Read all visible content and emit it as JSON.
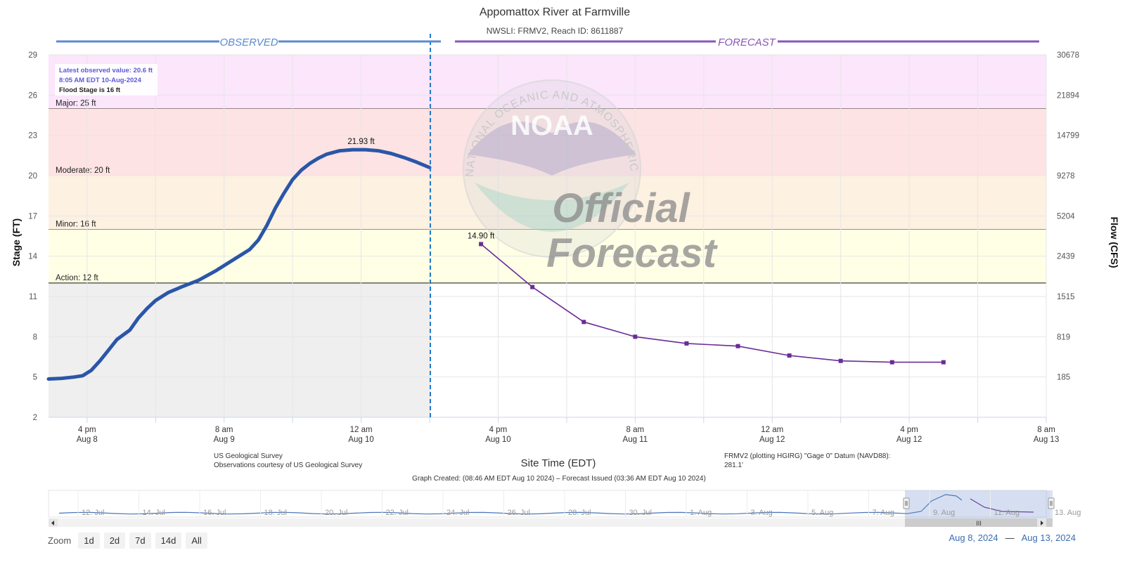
{
  "chart_data": {
    "type": "line",
    "title": "Appomattox River at Farmville",
    "subtitle": "NWSLI: FRMV2, Reach ID: 8611887",
    "xlabel": "Site Time (EDT)",
    "ylabel": "Stage (FT)",
    "y2label": "Flow (CFS)",
    "ylim": [
      2,
      29
    ],
    "yticks": [
      2,
      5,
      8,
      11,
      14,
      17,
      20,
      23,
      26,
      29
    ],
    "y2ticks": [
      {
        "stage": 5,
        "label": "185"
      },
      {
        "stage": 8,
        "label": "819"
      },
      {
        "stage": 11,
        "label": "1515"
      },
      {
        "stage": 14,
        "label": "2439"
      },
      {
        "stage": 17,
        "label": "5204"
      },
      {
        "stage": 20,
        "label": "9278"
      },
      {
        "stage": 23,
        "label": "14799"
      },
      {
        "stage": 26,
        "label": "21894"
      },
      {
        "stage": 29,
        "label": "30678"
      }
    ],
    "xlim": [
      "2024-08-08 11:30",
      "2024-08-13 08:00"
    ],
    "xticks": [
      {
        "t": "2024-08-08 16:00",
        "time": "4 pm",
        "date": "Aug 8"
      },
      {
        "t": "2024-08-09 08:00",
        "time": "8 am",
        "date": "Aug 9"
      },
      {
        "t": "2024-08-10 00:00",
        "time": "12 am",
        "date": "Aug 10"
      },
      {
        "t": "2024-08-10 16:00",
        "time": "4 pm",
        "date": "Aug 10"
      },
      {
        "t": "2024-08-11 08:00",
        "time": "8 am",
        "date": "Aug 11"
      },
      {
        "t": "2024-08-12 00:00",
        "time": "12 am",
        "date": "Aug 12"
      },
      {
        "t": "2024-08-12 16:00",
        "time": "4 pm",
        "date": "Aug 12"
      },
      {
        "t": "2024-08-13 08:00",
        "time": "8 am",
        "date": "Aug 13"
      }
    ],
    "grid": true,
    "now": "2024-08-10 08:05",
    "sections": {
      "observed": "OBSERVED",
      "forecast": "FORECAST"
    },
    "flood_bands": [
      {
        "label": "Major: 25 ft",
        "from": 25,
        "to": 29,
        "color": "#fbe6fb"
      },
      {
        "label": "Moderate: 20 ft",
        "from": 20,
        "to": 25,
        "color": "#fde3e3"
      },
      {
        "label": "Minor: 16 ft",
        "from": 16,
        "to": 20,
        "color": "#fdf1e1"
      },
      {
        "label": "Action: 12 ft",
        "from": 12,
        "to": 16,
        "color": "#ffffe6"
      }
    ],
    "series": [
      {
        "name": "Observed",
        "color": "#2a56a8",
        "points": [
          [
            "2024-08-08 11:30",
            4.85
          ],
          [
            "2024-08-08 13:00",
            4.9
          ],
          [
            "2024-08-08 14:30",
            5.0
          ],
          [
            "2024-08-08 15:30",
            5.1
          ],
          [
            "2024-08-08 16:30",
            5.5
          ],
          [
            "2024-08-08 17:30",
            6.2
          ],
          [
            "2024-08-08 18:30",
            7.0
          ],
          [
            "2024-08-08 19:30",
            7.8
          ],
          [
            "2024-08-08 21:00",
            8.5
          ],
          [
            "2024-08-08 22:00",
            9.4
          ],
          [
            "2024-08-08 23:00",
            10.1
          ],
          [
            "2024-08-09 00:00",
            10.7
          ],
          [
            "2024-08-09 01:30",
            11.3
          ],
          [
            "2024-08-09 03:00",
            11.7
          ],
          [
            "2024-08-09 05:00",
            12.2
          ],
          [
            "2024-08-09 07:00",
            12.9
          ],
          [
            "2024-08-09 09:00",
            13.7
          ],
          [
            "2024-08-09 11:00",
            14.5
          ],
          [
            "2024-08-09 12:00",
            15.2
          ],
          [
            "2024-08-09 13:00",
            16.3
          ],
          [
            "2024-08-09 14:00",
            17.6
          ],
          [
            "2024-08-09 15:00",
            18.7
          ],
          [
            "2024-08-09 16:00",
            19.7
          ],
          [
            "2024-08-09 17:00",
            20.4
          ],
          [
            "2024-08-09 18:00",
            20.9
          ],
          [
            "2024-08-09 19:00",
            21.3
          ],
          [
            "2024-08-09 20:00",
            21.6
          ],
          [
            "2024-08-09 21:30",
            21.85
          ],
          [
            "2024-08-09 23:00",
            21.93
          ],
          [
            "2024-08-10 00:30",
            21.93
          ],
          [
            "2024-08-10 02:00",
            21.85
          ],
          [
            "2024-08-10 03:30",
            21.65
          ],
          [
            "2024-08-10 05:00",
            21.35
          ],
          [
            "2024-08-10 06:30",
            21.0
          ],
          [
            "2024-08-10 08:00",
            20.6
          ]
        ],
        "peak_label": {
          "t": "2024-08-10 00:00",
          "v": 21.93,
          "text": "21.93 ft"
        }
      },
      {
        "name": "Forecast",
        "color": "#6a2c97",
        "points": [
          [
            "2024-08-10 14:00",
            14.9
          ],
          [
            "2024-08-10 20:00",
            11.7
          ],
          [
            "2024-08-11 02:00",
            9.1
          ],
          [
            "2024-08-11 08:00",
            8.0
          ],
          [
            "2024-08-11 14:00",
            7.5
          ],
          [
            "2024-08-11 20:00",
            7.3
          ],
          [
            "2024-08-12 02:00",
            6.6
          ],
          [
            "2024-08-12 08:00",
            6.2
          ],
          [
            "2024-08-12 14:00",
            6.1
          ],
          [
            "2024-08-12 20:00",
            6.1
          ]
        ],
        "peak_label": {
          "t": "2024-08-10 14:00",
          "v": 14.9,
          "text": "14.90 ft"
        }
      }
    ],
    "info_box": {
      "latest": "Latest observed value: 20.6 ft",
      "time": "8:05 AM EDT 10-Aug-2024",
      "flood_stage": "Flood Stage is 16 ft"
    },
    "watermark": {
      "ring_text": "NATIONAL OCEANIC AND ATMOSPHERIC ADMINISTRATION · U.S. DEPARTMENT OF COMMERCE",
      "logo_text": "NOAA",
      "stamp_line1": "Official",
      "stamp_line2": "Forecast"
    },
    "credits": {
      "source_line1": "US Geological Survey",
      "source_line2": "Observations courtesy of US Geological Survey",
      "datum_line1": "FRMV2 (plotting HGIRG) \"Gage 0\" Datum (NAVD88):",
      "datum_line2": "281.1'",
      "created": "Graph Created: (08:46 AM EDT Aug 10 2024) – Forecast Issued (03:36 AM EDT Aug 10 2024)"
    },
    "navigator": {
      "labels": [
        "12. Jul",
        "14. Jul",
        "16. Jul",
        "18. Jul",
        "20. Jul",
        "22. Jul",
        "24. Jul",
        "26. Jul",
        "28. Jul",
        "30. Jul",
        "1. Aug",
        "3. Aug",
        "5. Aug",
        "7. Aug",
        "9. Aug",
        "11. Aug",
        "13. Aug"
      ]
    }
  },
  "zoom": {
    "label": "Zoom",
    "buttons": [
      "1d",
      "2d",
      "7d",
      "14d",
      "All"
    ]
  },
  "range": {
    "from": "Aug 8, 2024",
    "separator": "—",
    "to": "Aug 13, 2024"
  },
  "colors": {
    "observed": "#2a56a8",
    "forecast": "#6a2c97",
    "now_line": "#1f78c8",
    "observed_header": "#5b8ad0",
    "forecast_header": "#8a55b8"
  }
}
